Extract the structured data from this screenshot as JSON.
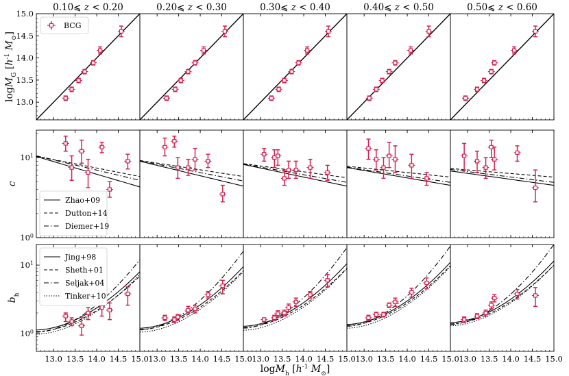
{
  "figure": {
    "xlabel": "logM_h [h^-1 M_⊙]",
    "row_ylabels": [
      "logM_G [h^-1 M_⊙]",
      "c",
      "b_h"
    ]
  },
  "chart_data": {
    "type": "scatter",
    "panel_titles": [
      "0.10⩽ z < 0.20",
      "0.20⩽ z < 0.30",
      "0.30⩽ z < 0.40",
      "0.40⩽ z < 0.50",
      "0.50⩽ z < 0.60"
    ],
    "x_ticks": [
      "13.0",
      "13.5",
      "14.0",
      "14.5",
      "15.0"
    ],
    "xlim": [
      12.6,
      15.0
    ],
    "rows": [
      {
        "id": "mass",
        "ylabel": "logM_G [h^-1 M_⊙]",
        "ylim": [
          12.6,
          15.0
        ],
        "log_scale": false,
        "y_ticks": [
          "13.0",
          "13.5",
          "14.0",
          "14.5",
          "15.0"
        ],
        "legend": [
          {
            "label": "BCG",
            "style": "marker"
          }
        ],
        "reference_line": "one-to-one",
        "panels": [
          {
            "x": [
              13.28,
              13.42,
              13.58,
              13.72,
              13.92,
              14.08,
              14.57
            ],
            "y": [
              13.09,
              13.29,
              13.49,
              13.69,
              13.89,
              14.17,
              14.6
            ],
            "yerr": [
              0.05,
              0.05,
              0.05,
              0.05,
              0.05,
              0.08,
              0.12
            ]
          },
          {
            "x": [
              13.22,
              13.42,
              13.55,
              13.72,
              13.88,
              14.08,
              14.57
            ],
            "y": [
              13.09,
              13.29,
              13.49,
              13.69,
              13.89,
              14.17,
              14.6
            ],
            "yerr": [
              0.05,
              0.05,
              0.05,
              0.05,
              0.05,
              0.08,
              0.12
            ]
          },
          {
            "x": [
              13.25,
              13.42,
              13.55,
              13.72,
              13.88,
              14.08,
              14.57
            ],
            "y": [
              13.09,
              13.29,
              13.49,
              13.69,
              13.89,
              14.17,
              14.6
            ],
            "yerr": [
              0.05,
              0.05,
              0.05,
              0.05,
              0.05,
              0.08,
              0.12
            ]
          },
          {
            "x": [
              13.12,
              13.28,
              13.42,
              13.58,
              13.72,
              14.08,
              14.5
            ],
            "y": [
              13.09,
              13.29,
              13.49,
              13.69,
              13.89,
              14.17,
              14.6
            ],
            "yerr": [
              0.05,
              0.05,
              0.05,
              0.05,
              0.05,
              0.08,
              0.12
            ]
          },
          {
            "x": [
              12.95,
              13.22,
              13.38,
              13.55,
              13.62,
              14.08,
              14.57
            ],
            "y": [
              13.09,
              13.29,
              13.49,
              13.69,
              13.89,
              14.17,
              14.6
            ],
            "yerr": [
              0.05,
              0.05,
              0.05,
              0.05,
              0.05,
              0.08,
              0.12
            ]
          }
        ]
      },
      {
        "id": "concentration",
        "ylabel": "c",
        "ylim": [
          1,
          22
        ],
        "log_scale": true,
        "y_ticks": [
          "10^0",
          "10^1"
        ],
        "legend": [
          {
            "label": "Zhao+09",
            "style": "solid"
          },
          {
            "label": "Dutton+14",
            "style": "dashed"
          },
          {
            "label": "Diemer+19",
            "style": "dashdot"
          }
        ],
        "models": {
          "Zhao+09": {
            "x": [
              12.6,
              15.0
            ],
            "y": [
              [
                10.3,
                4.3
              ],
              [
                9.0,
                4.4
              ],
              [
                8.2,
                4.4
              ],
              [
                7.5,
                4.5
              ],
              [
                6.8,
                4.5
              ]
            ]
          },
          "Dutton+14": {
            "x": [
              12.6,
              15.0
            ],
            "y": [
              [
                10.4,
                5.8
              ],
              [
                9.2,
                5.8
              ],
              [
                8.4,
                5.6
              ],
              [
                7.8,
                5.7
              ],
              [
                7.3,
                5.7
              ]
            ]
          },
          "Diemer+19": {
            "x": [
              12.6,
              15.0
            ],
            "y": [
              [
                10.5,
                5.2
              ],
              [
                9.1,
                5.1
              ],
              [
                8.3,
                4.9
              ],
              [
                7.6,
                4.9
              ],
              [
                7.1,
                4.9
              ]
            ]
          }
        },
        "panels": [
          {
            "x": [
              13.28,
              13.42,
              13.65,
              13.8,
              14.12,
              14.3,
              14.72
            ],
            "y": [
              15.0,
              7.5,
              12.0,
              6.5,
              13.5,
              4.0,
              9.0
            ],
            "ylo": [
              12.0,
              5.2,
              8.5,
              4.2,
              11.5,
              3.2,
              7.2
            ],
            "yhi": [
              18.5,
              10.5,
              16.5,
              9.5,
              15.5,
              5.0,
              11.0
            ]
          },
          {
            "x": [
              13.18,
              13.4,
              13.48,
              13.72,
              13.88,
              14.18,
              14.52
            ],
            "y": [
              13.5,
              16.0,
              7.5,
              7.5,
              9.5,
              9.0,
              3.5
            ],
            "ylo": [
              10.5,
              13.5,
              5.5,
              6.0,
              7.0,
              7.5,
              2.8
            ],
            "yhi": [
              17.5,
              18.5,
              10.0,
              9.5,
              13.0,
              11.0,
              4.5
            ]
          },
          {
            "x": [
              13.08,
              13.32,
              13.4,
              13.55,
              13.65,
              13.82,
              14.15,
              14.55
            ],
            "y": [
              11.0,
              10.0,
              10.5,
              5.5,
              7.0,
              7.0,
              7.5,
              6.5
            ],
            "ylo": [
              9.0,
              7.5,
              8.0,
              4.5,
              5.5,
              5.5,
              5.5,
              5.2
            ],
            "yhi": [
              13.0,
              12.5,
              12.5,
              7.0,
              9.0,
              9.0,
              9.5,
              8.0
            ]
          },
          {
            "x": [
              13.1,
              13.28,
              13.45,
              13.58,
              13.72,
              14.1,
              14.45
            ],
            "y": [
              13.0,
              9.5,
              7.5,
              10.5,
              9.5,
              8.0,
              5.5
            ],
            "ylo": [
              9.5,
              7.0,
              5.5,
              7.5,
              6.5,
              5.5,
              4.5
            ],
            "yhi": [
              17.0,
              12.5,
              10.0,
              15.5,
              14.0,
              11.0,
              6.5
            ]
          },
          {
            "x": [
              12.92,
              13.22,
              13.42,
              13.55,
              13.62,
              14.15,
              14.57
            ],
            "y": [
              10.5,
              9.0,
              7.5,
              13.5,
              9.5,
              11.5,
              4.2
            ],
            "ylo": [
              7.0,
              6.5,
              5.5,
              10.0,
              7.0,
              9.0,
              2.8
            ],
            "yhi": [
              15.0,
              12.0,
              10.0,
              16.5,
              13.5,
              14.0,
              7.0
            ]
          }
        ]
      },
      {
        "id": "bias",
        "ylabel": "b_h",
        "ylim": [
          0.55,
          20
        ],
        "log_scale": true,
        "y_ticks": [
          "10^0",
          "10^1"
        ],
        "legend": [
          {
            "label": "Jing+98",
            "style": "solid"
          },
          {
            "label": "Sheth+01",
            "style": "dashed"
          },
          {
            "label": "Seljak+04",
            "style": "dashdot"
          },
          {
            "label": "Tinker+10",
            "style": "dotted"
          }
        ],
        "models": {
          "Jing+98": {
            "x": [
              12.6,
              15.0
            ],
            "y": [
              [
                1.13,
                8.0
              ],
              [
                1.2,
                9.5
              ],
              [
                1.28,
                10.5
              ],
              [
                1.36,
                11.0
              ],
              [
                1.45,
                11.5
              ]
            ]
          },
          "Sheth+01": {
            "x": [
              12.6,
              15.0
            ],
            "y": [
              [
                1.07,
                6.9
              ],
              [
                1.15,
                8.3
              ],
              [
                1.23,
                9.0
              ],
              [
                1.31,
                9.8
              ],
              [
                1.39,
                10.0
              ]
            ]
          },
          "Seljak+04": {
            "x": [
              12.6,
              15.0
            ],
            "y": [
              [
                1.05,
                12.0
              ],
              [
                1.13,
                16.0
              ],
              [
                1.2,
                18.0
              ],
              [
                1.28,
                19.0
              ],
              [
                1.36,
                20.0
              ]
            ]
          },
          "Tinker+10": {
            "x": [
              12.6,
              15.0
            ],
            "y": [
              [
                0.98,
                7.3
              ],
              [
                1.05,
                8.0
              ],
              [
                1.12,
                8.8
              ],
              [
                1.2,
                9.5
              ],
              [
                1.3,
                10.0
              ]
            ]
          }
        },
        "panels": [
          {
            "x": [
              13.28,
              13.42,
              13.65,
              13.8,
              14.12,
              14.3,
              14.72
            ],
            "y": [
              1.8,
              1.5,
              1.3,
              2.0,
              2.4,
              2.2,
              3.8
            ],
            "ylo": [
              1.5,
              1.3,
              0.95,
              1.6,
              1.8,
              1.6,
              2.6
            ],
            "yhi": [
              2.0,
              1.7,
              1.7,
              2.4,
              2.8,
              2.8,
              4.8
            ]
          },
          {
            "x": [
              13.18,
              13.4,
              13.48,
              13.72,
              13.88,
              14.18,
              14.52
            ],
            "y": [
              1.7,
              1.6,
              1.75,
              2.2,
              2.3,
              3.7,
              5.0
            ],
            "ylo": [
              1.55,
              1.45,
              1.55,
              2.0,
              2.0,
              3.3,
              3.8
            ],
            "yhi": [
              1.85,
              1.75,
              1.9,
              2.5,
              2.6,
              4.1,
              6.0
            ]
          },
          {
            "x": [
              13.08,
              13.32,
              13.4,
              13.55,
              13.65,
              13.82,
              14.15,
              14.55
            ],
            "y": [
              1.6,
              1.7,
              1.95,
              2.0,
              2.4,
              2.9,
              3.7,
              6.0
            ],
            "ylo": [
              1.5,
              1.55,
              1.75,
              1.8,
              2.1,
              2.5,
              3.3,
              4.8
            ],
            "yhi": [
              1.7,
              1.85,
              2.15,
              2.2,
              2.7,
              3.3,
              4.1,
              7.3
            ]
          },
          {
            "x": [
              13.1,
              13.28,
              13.45,
              13.58,
              13.72,
              14.1,
              14.45
            ],
            "y": [
              1.7,
              1.9,
              1.9,
              2.6,
              2.9,
              4.0,
              5.5
            ],
            "ylo": [
              1.55,
              1.75,
              1.75,
              2.4,
              2.5,
              3.4,
              4.5
            ],
            "yhi": [
              1.85,
              2.05,
              2.05,
              2.8,
              3.3,
              4.6,
              6.5
            ]
          },
          {
            "x": [
              12.92,
              13.22,
              13.42,
              13.55,
              13.62,
              14.15,
              14.57
            ],
            "y": [
              1.6,
              1.8,
              2.0,
              2.6,
              3.3,
              3.8,
              3.6
            ],
            "ylo": [
              1.45,
              1.65,
              1.8,
              2.3,
              2.9,
              3.2,
              2.5
            ],
            "yhi": [
              1.75,
              1.95,
              2.2,
              2.9,
              3.7,
              4.4,
              4.7
            ]
          }
        ]
      }
    ],
    "colors": {
      "marker": "#d6204f",
      "line": "#000000"
    },
    "grid": false
  }
}
